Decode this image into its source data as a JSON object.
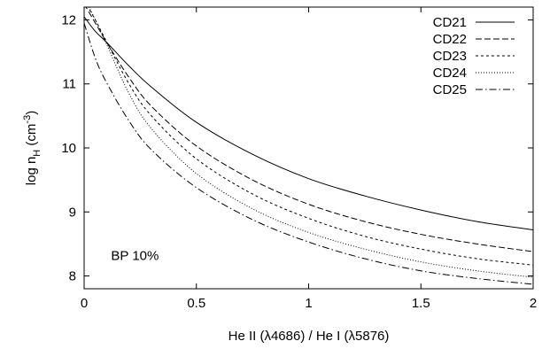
{
  "chart_data": {
    "type": "line",
    "xlabel": "He II (λ4686) / He I (λ5876)",
    "ylabel": {
      "base": "log n",
      "sub": "H",
      "unit_open": " (cm",
      "sup": "-3",
      "unit_close": ")"
    },
    "annotation": "BP 10%",
    "xlim": [
      0,
      2
    ],
    "ylim": [
      7.8,
      12.2
    ],
    "x_ticks": [
      0,
      0.5,
      1,
      1.5,
      2
    ],
    "x_tick_labels": [
      "0",
      "0.5",
      "1",
      "1.5",
      "2"
    ],
    "y_ticks": [
      8,
      9,
      10,
      11,
      12
    ],
    "y_tick_labels": [
      "8",
      "9",
      "10",
      "11",
      "12"
    ],
    "grid": false,
    "legend_position": "top-right",
    "series": [
      {
        "name": "CD21",
        "dash": "solid",
        "x": [
          0,
          0.05,
          0.1,
          0.2,
          0.3,
          0.5,
          0.75,
          1.0,
          1.25,
          1.5,
          1.75,
          2.0
        ],
        "y": [
          12.05,
          11.82,
          11.65,
          11.28,
          10.95,
          10.4,
          9.9,
          9.52,
          9.25,
          9.03,
          8.85,
          8.72
        ]
      },
      {
        "name": "CD22",
        "dash": "dashed",
        "x": [
          0,
          0.05,
          0.1,
          0.2,
          0.3,
          0.5,
          0.75,
          1.0,
          1.25,
          1.5,
          1.75,
          2.0
        ],
        "y": [
          12.25,
          11.95,
          11.65,
          11.1,
          10.65,
          10.03,
          9.5,
          9.12,
          8.85,
          8.65,
          8.5,
          8.38
        ]
      },
      {
        "name": "CD23",
        "dash": "short-dashed",
        "x": [
          0,
          0.05,
          0.1,
          0.2,
          0.3,
          0.5,
          0.75,
          1.0,
          1.25,
          1.5,
          1.75,
          2.0
        ],
        "y": [
          12.3,
          12.0,
          11.66,
          11.0,
          10.5,
          9.83,
          9.28,
          8.9,
          8.62,
          8.42,
          8.27,
          8.17
        ]
      },
      {
        "name": "CD24",
        "dash": "dotted",
        "x": [
          0,
          0.05,
          0.1,
          0.2,
          0.3,
          0.5,
          0.75,
          1.0,
          1.25,
          1.5,
          1.75,
          2.0
        ],
        "y": [
          12.35,
          12.0,
          11.62,
          10.85,
          10.3,
          9.6,
          9.05,
          8.68,
          8.42,
          8.22,
          8.08,
          7.98
        ]
      },
      {
        "name": "CD25",
        "dash": "dash-dot",
        "x": [
          0,
          0.05,
          0.1,
          0.2,
          0.3,
          0.5,
          0.75,
          1.0,
          1.25,
          1.5,
          1.75,
          2.0
        ],
        "y": [
          11.95,
          11.4,
          11.02,
          10.42,
          9.97,
          9.38,
          8.88,
          8.53,
          8.27,
          8.08,
          7.96,
          7.87
        ]
      }
    ]
  }
}
